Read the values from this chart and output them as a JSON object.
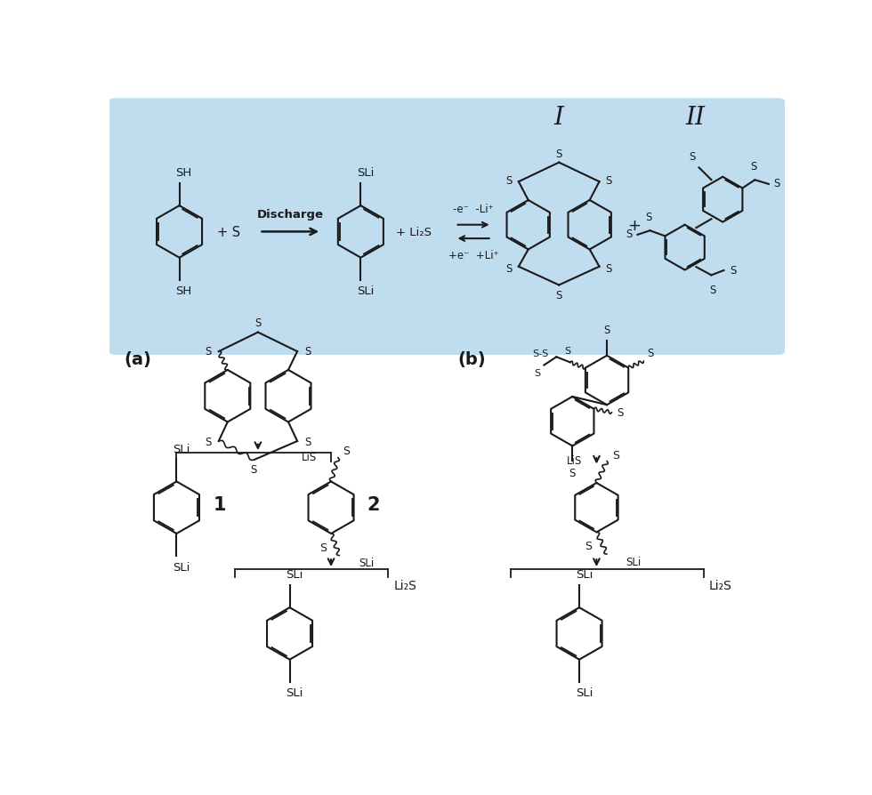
{
  "bg_box_color": "#c0ddf0",
  "line_color": "#1a1a1a",
  "figsize": [
    9.8,
    8.95
  ],
  "dpi": 100,
  "label_a": "(a)",
  "label_b": "(b)",
  "SH": "SH",
  "SLi": "SLi",
  "LiS": "LiS",
  "Li2S": "Li₂S",
  "discharge": "Discharge",
  "minus_e_Li": "-e⁻  -Li⁺",
  "plus_e_Li": "+e⁻  +Li⁺",
  "label_1": "1",
  "label_2": "2",
  "roman_I": "I",
  "roman_II": "II",
  "plus": "+",
  "S": "S"
}
